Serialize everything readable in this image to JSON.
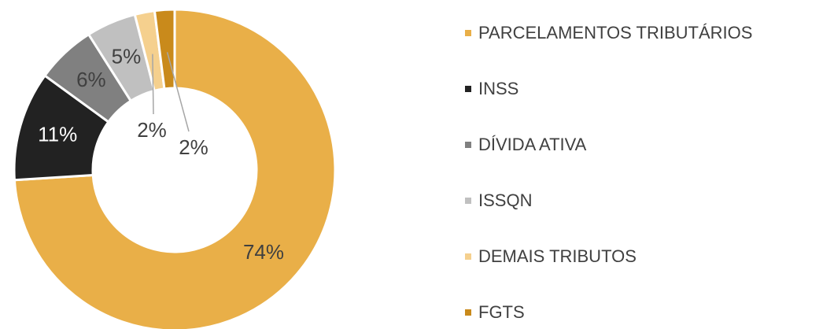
{
  "chart_data": {
    "type": "donut",
    "categories": [
      "PARCELAMENTOS TRIBUTÁRIOS",
      "INSS",
      "DÍVIDA ATIVA",
      "ISSQN",
      "DEMAIS TRIBUTOS",
      "FGTS"
    ],
    "values": [
      74,
      11,
      6,
      5,
      2,
      2
    ],
    "value_labels": [
      "74%",
      "11%",
      "6%",
      "5%",
      "2%",
      "2%"
    ],
    "colors": [
      "#E9AF48",
      "#222222",
      "#808080",
      "#C0C0C0",
      "#F5D08E",
      "#C98A1B"
    ],
    "legend": "right"
  }
}
